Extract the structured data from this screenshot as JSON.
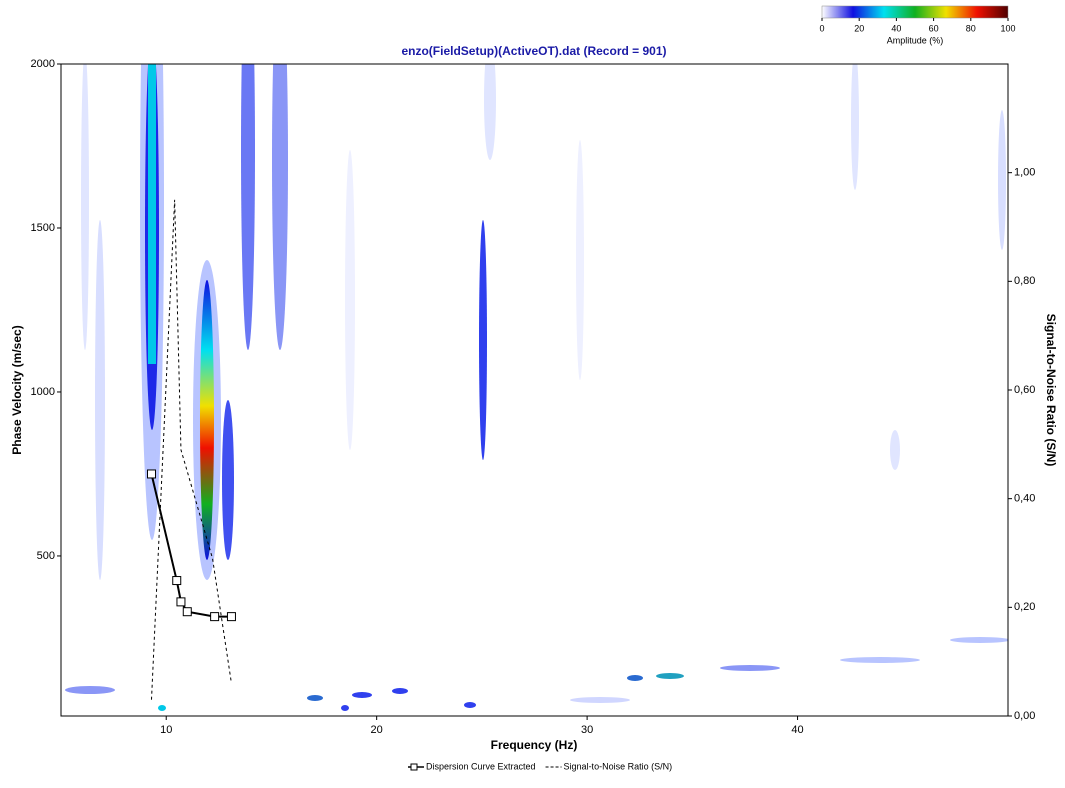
{
  "chart_data": {
    "type": "line",
    "title": "enzo(FieldSetup)(ActiveOT).dat (Record = 901)",
    "x_label": "Frequency (Hz)",
    "y_label": "Phase Velocity (m/sec)",
    "y2_label": "Signal-to-Noise Ratio (S/N)",
    "xlim": [
      5,
      50
    ],
    "xticks": [
      10,
      20,
      30,
      40
    ],
    "ylim": [
      12,
      2000
    ],
    "yticks": [
      500,
      1000,
      1500,
      2000
    ],
    "y2lim": [
      0,
      1.2
    ],
    "y2ticks": [
      {
        "value": 0,
        "label": "0,00"
      },
      {
        "value": 0.2,
        "label": "0,20"
      },
      {
        "value": 0.4,
        "label": "0,40"
      },
      {
        "value": 0.6,
        "label": "0,60"
      },
      {
        "value": 0.8,
        "label": "0,80"
      },
      {
        "value": 1.0,
        "label": "1,00"
      }
    ],
    "colorbar": {
      "label": "Amplitude (%)",
      "lim": [
        0,
        100
      ],
      "ticks": [
        0,
        20,
        40,
        60,
        80,
        100
      ],
      "colors": [
        "#ffffff",
        "#1010e0",
        "#00e0f0",
        "#10b020",
        "#f0e000",
        "#f01000",
        "#500000"
      ]
    },
    "series": [
      {
        "name": "Dispersion Curve Extracted",
        "color": "#000000",
        "marker": "square",
        "dashed": false,
        "x": [
          9.3,
          10.5,
          10.7,
          11.0,
          12.3,
          13.1
        ],
        "values": [
          750,
          425,
          360,
          330,
          315,
          315
        ]
      },
      {
        "name": "Signal-to-Noise Ratio (S/N)",
        "color": "#000000",
        "marker": "none",
        "dashed": true,
        "axis": "y2",
        "x": [
          9.3,
          10.4,
          10.7,
          12.2,
          13.1
        ],
        "values": [
          0.03,
          0.95,
          0.49,
          0.29,
          0.06
        ]
      }
    ]
  }
}
